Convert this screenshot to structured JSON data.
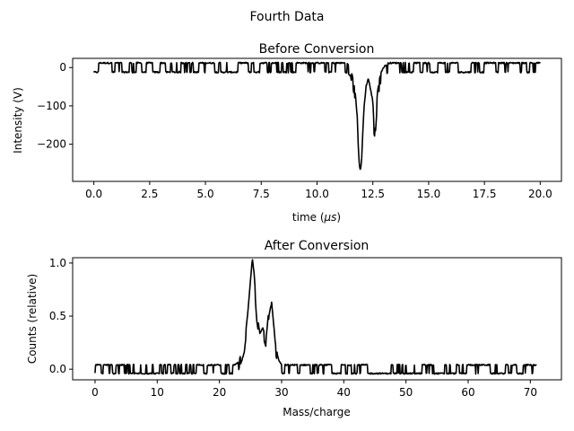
{
  "figure": {
    "suptitle": "Fourth Data"
  },
  "chart_data": [
    {
      "type": "line",
      "title": "Before Conversion",
      "xlabel": "time (",
      "xlabel_mu": "μs",
      "xlabel_close": ")",
      "ylabel": "Intensity (V)",
      "xlim": [
        -0.95,
        20.95
      ],
      "ylim": [
        -297,
        24
      ],
      "xticks": [
        0.0,
        2.5,
        5.0,
        7.5,
        10.0,
        12.5,
        15.0,
        17.5,
        20.0
      ],
      "xtick_labels": [
        "0.0",
        "2.5",
        "5.0",
        "7.5",
        "10.0",
        "12.5",
        "15.0",
        "17.5",
        "20.0"
      ],
      "yticks": [
        0,
        -100,
        -200
      ],
      "ytick_labels": [
        "0",
        "−100",
        "−200"
      ],
      "grid": false,
      "series": [
        {
          "color": "#000000",
          "baseline_band": [
            -12,
            12
          ],
          "x": [
            0.0,
            11.3,
            11.5,
            11.6,
            11.7,
            11.8,
            11.85,
            11.9,
            11.95,
            12.0,
            12.05,
            12.1,
            12.2,
            12.3,
            12.4,
            12.5,
            12.55,
            12.6,
            12.65,
            12.7,
            12.8,
            12.9,
            13.0,
            13.2,
            20.0
          ],
          "y": [
            0,
            0,
            -10,
            -40,
            -70,
            -140,
            -220,
            -270,
            -280,
            -250,
            -180,
            -120,
            -60,
            -40,
            -70,
            -100,
            -160,
            -170,
            -130,
            -80,
            -40,
            -20,
            -10,
            0,
            0
          ]
        }
      ]
    },
    {
      "type": "line",
      "title": "After Conversion",
      "xlabel": "Mass/charge",
      "ylabel": "Counts (relative)",
      "xlim": [
        -3.6,
        75.0
      ],
      "ylim": [
        -0.1,
        1.05
      ],
      "xticks": [
        0,
        10,
        20,
        30,
        40,
        50,
        60,
        70
      ],
      "xtick_labels": [
        "0",
        "10",
        "20",
        "30",
        "40",
        "50",
        "60",
        "70"
      ],
      "yticks": [
        0.0,
        0.5,
        1.0
      ],
      "ytick_labels": [
        "0.0",
        "0.5",
        "1.0"
      ],
      "grid": false,
      "series": [
        {
          "color": "#000000",
          "baseline_band": [
            -0.04,
            0.04
          ],
          "x": [
            0,
            22.5,
            23,
            23.5,
            24,
            24.5,
            25,
            25.3,
            25.6,
            26,
            26.5,
            27,
            27.5,
            28,
            28.3,
            28.7,
            29,
            29.5,
            30,
            71
          ],
          "y": [
            0,
            0,
            0.02,
            0.1,
            0.2,
            0.45,
            0.8,
            1.0,
            0.85,
            0.5,
            0.3,
            0.35,
            0.25,
            0.55,
            0.65,
            0.4,
            0.2,
            0.05,
            0,
            0
          ]
        }
      ]
    }
  ]
}
